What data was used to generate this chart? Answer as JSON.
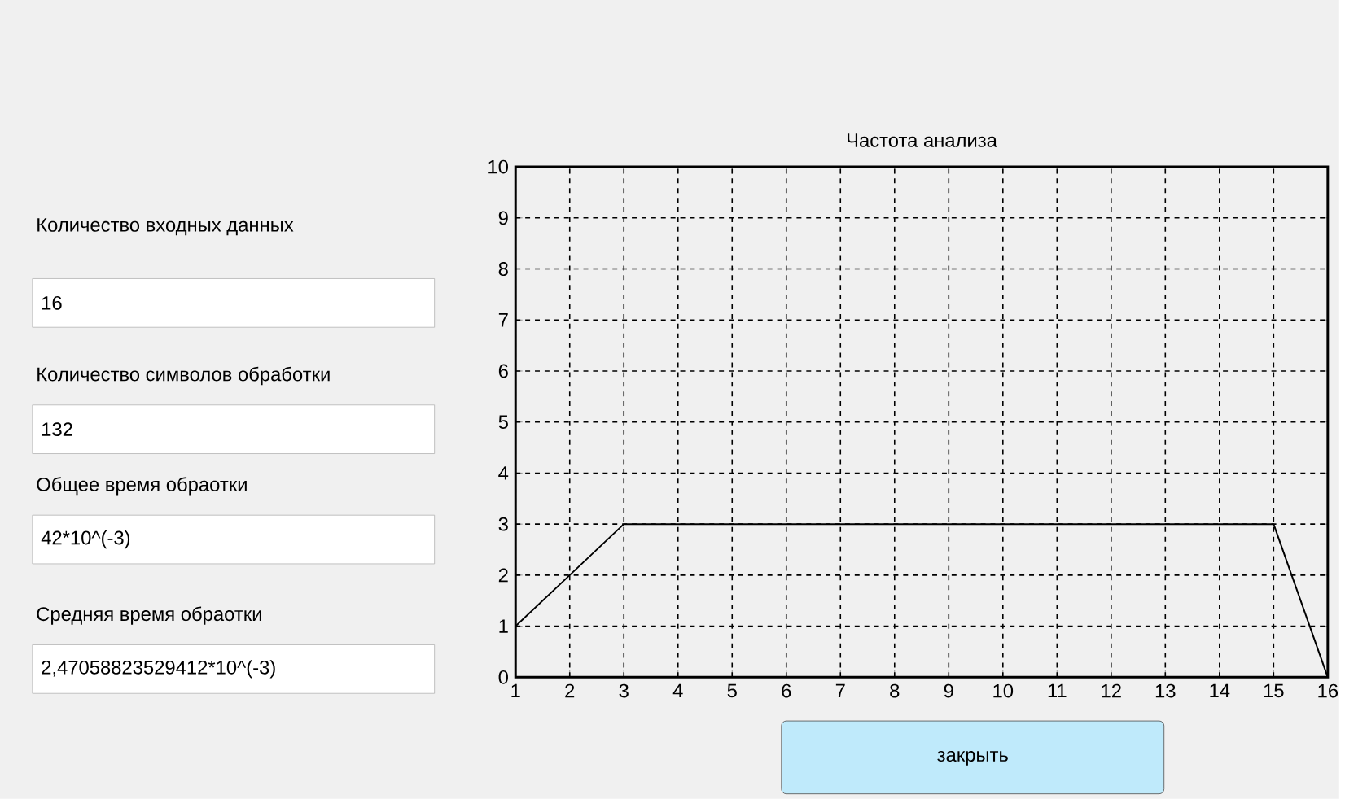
{
  "chart_data": {
    "type": "line",
    "title": "Частота анализа",
    "x": [
      1,
      2,
      3,
      4,
      5,
      6,
      7,
      8,
      9,
      10,
      11,
      12,
      13,
      14,
      15,
      16
    ],
    "values": [
      1,
      2,
      3,
      3,
      3,
      3,
      3,
      3,
      3,
      3,
      3,
      3,
      3,
      3,
      3,
      0
    ],
    "color": "#000000",
    "xlim": [
      1,
      16
    ],
    "ylim": [
      0,
      10
    ],
    "xticks": [
      1,
      2,
      3,
      4,
      5,
      6,
      7,
      8,
      9,
      10,
      11,
      12,
      13,
      14,
      15,
      16
    ],
    "yticks": [
      0,
      1,
      2,
      3,
      4,
      5,
      6,
      7,
      8,
      9,
      10
    ],
    "grid": true,
    "annotations": [
      "Количество входных данных",
      "16",
      "Количество символов обработки",
      "132",
      "Общее время обраотки",
      "42*10^(-3)",
      "Средняя время обраотки",
      "2,47058823529412*10^(-3)",
      "закрыть"
    ]
  }
}
